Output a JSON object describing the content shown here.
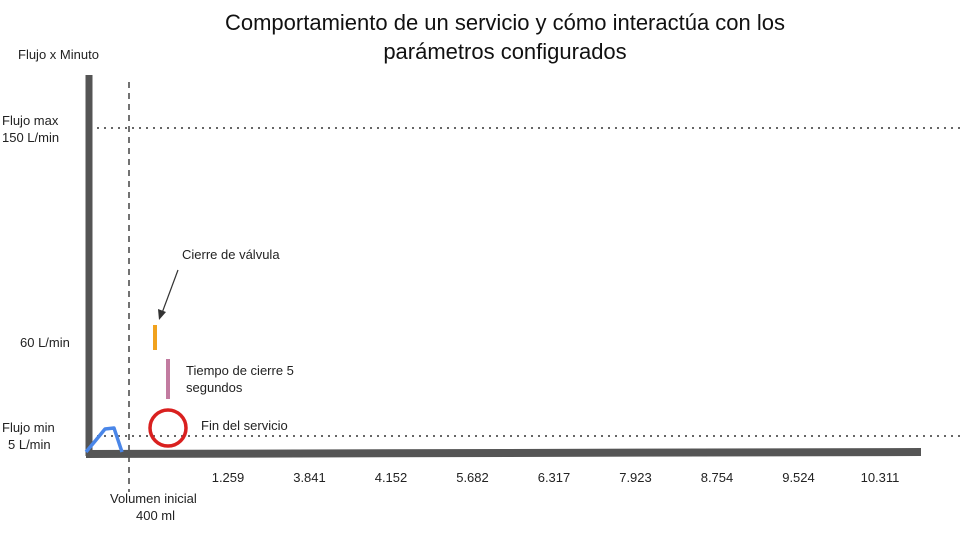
{
  "title": "Comportamiento de un servicio y cómo interactúa con los parámetros configurados",
  "y_axis_label": "Flujo x Minuto",
  "y_levels": {
    "flujo_max_name": "Flujo max",
    "flujo_max_value": "150 L/min",
    "mid_value": "60 L/min",
    "flujo_min_name": "Flujo min",
    "flujo_min_value": "5 L/min"
  },
  "x_axis": {
    "initial_volume_name": "Volumen inicial",
    "initial_volume_value": "400 ml",
    "ticks": [
      "1.259",
      "3.841",
      "4.152",
      "5.682",
      "6.317",
      "7.923",
      "8.754",
      "9.524",
      "10.311"
    ]
  },
  "annotations": {
    "valve_close": "Cierre de válvula",
    "close_time_line1": "Tiempo de cierre 5",
    "close_time_line2": "segundos",
    "service_end": "Fin del servicio"
  },
  "colors": {
    "axis": "#555555",
    "dotted": "#666666",
    "flow_curve": "#4a86e8",
    "valve_marker": "#f1a21d",
    "close_time_marker": "#c27ba0",
    "end_circle": "#d9201f"
  }
}
